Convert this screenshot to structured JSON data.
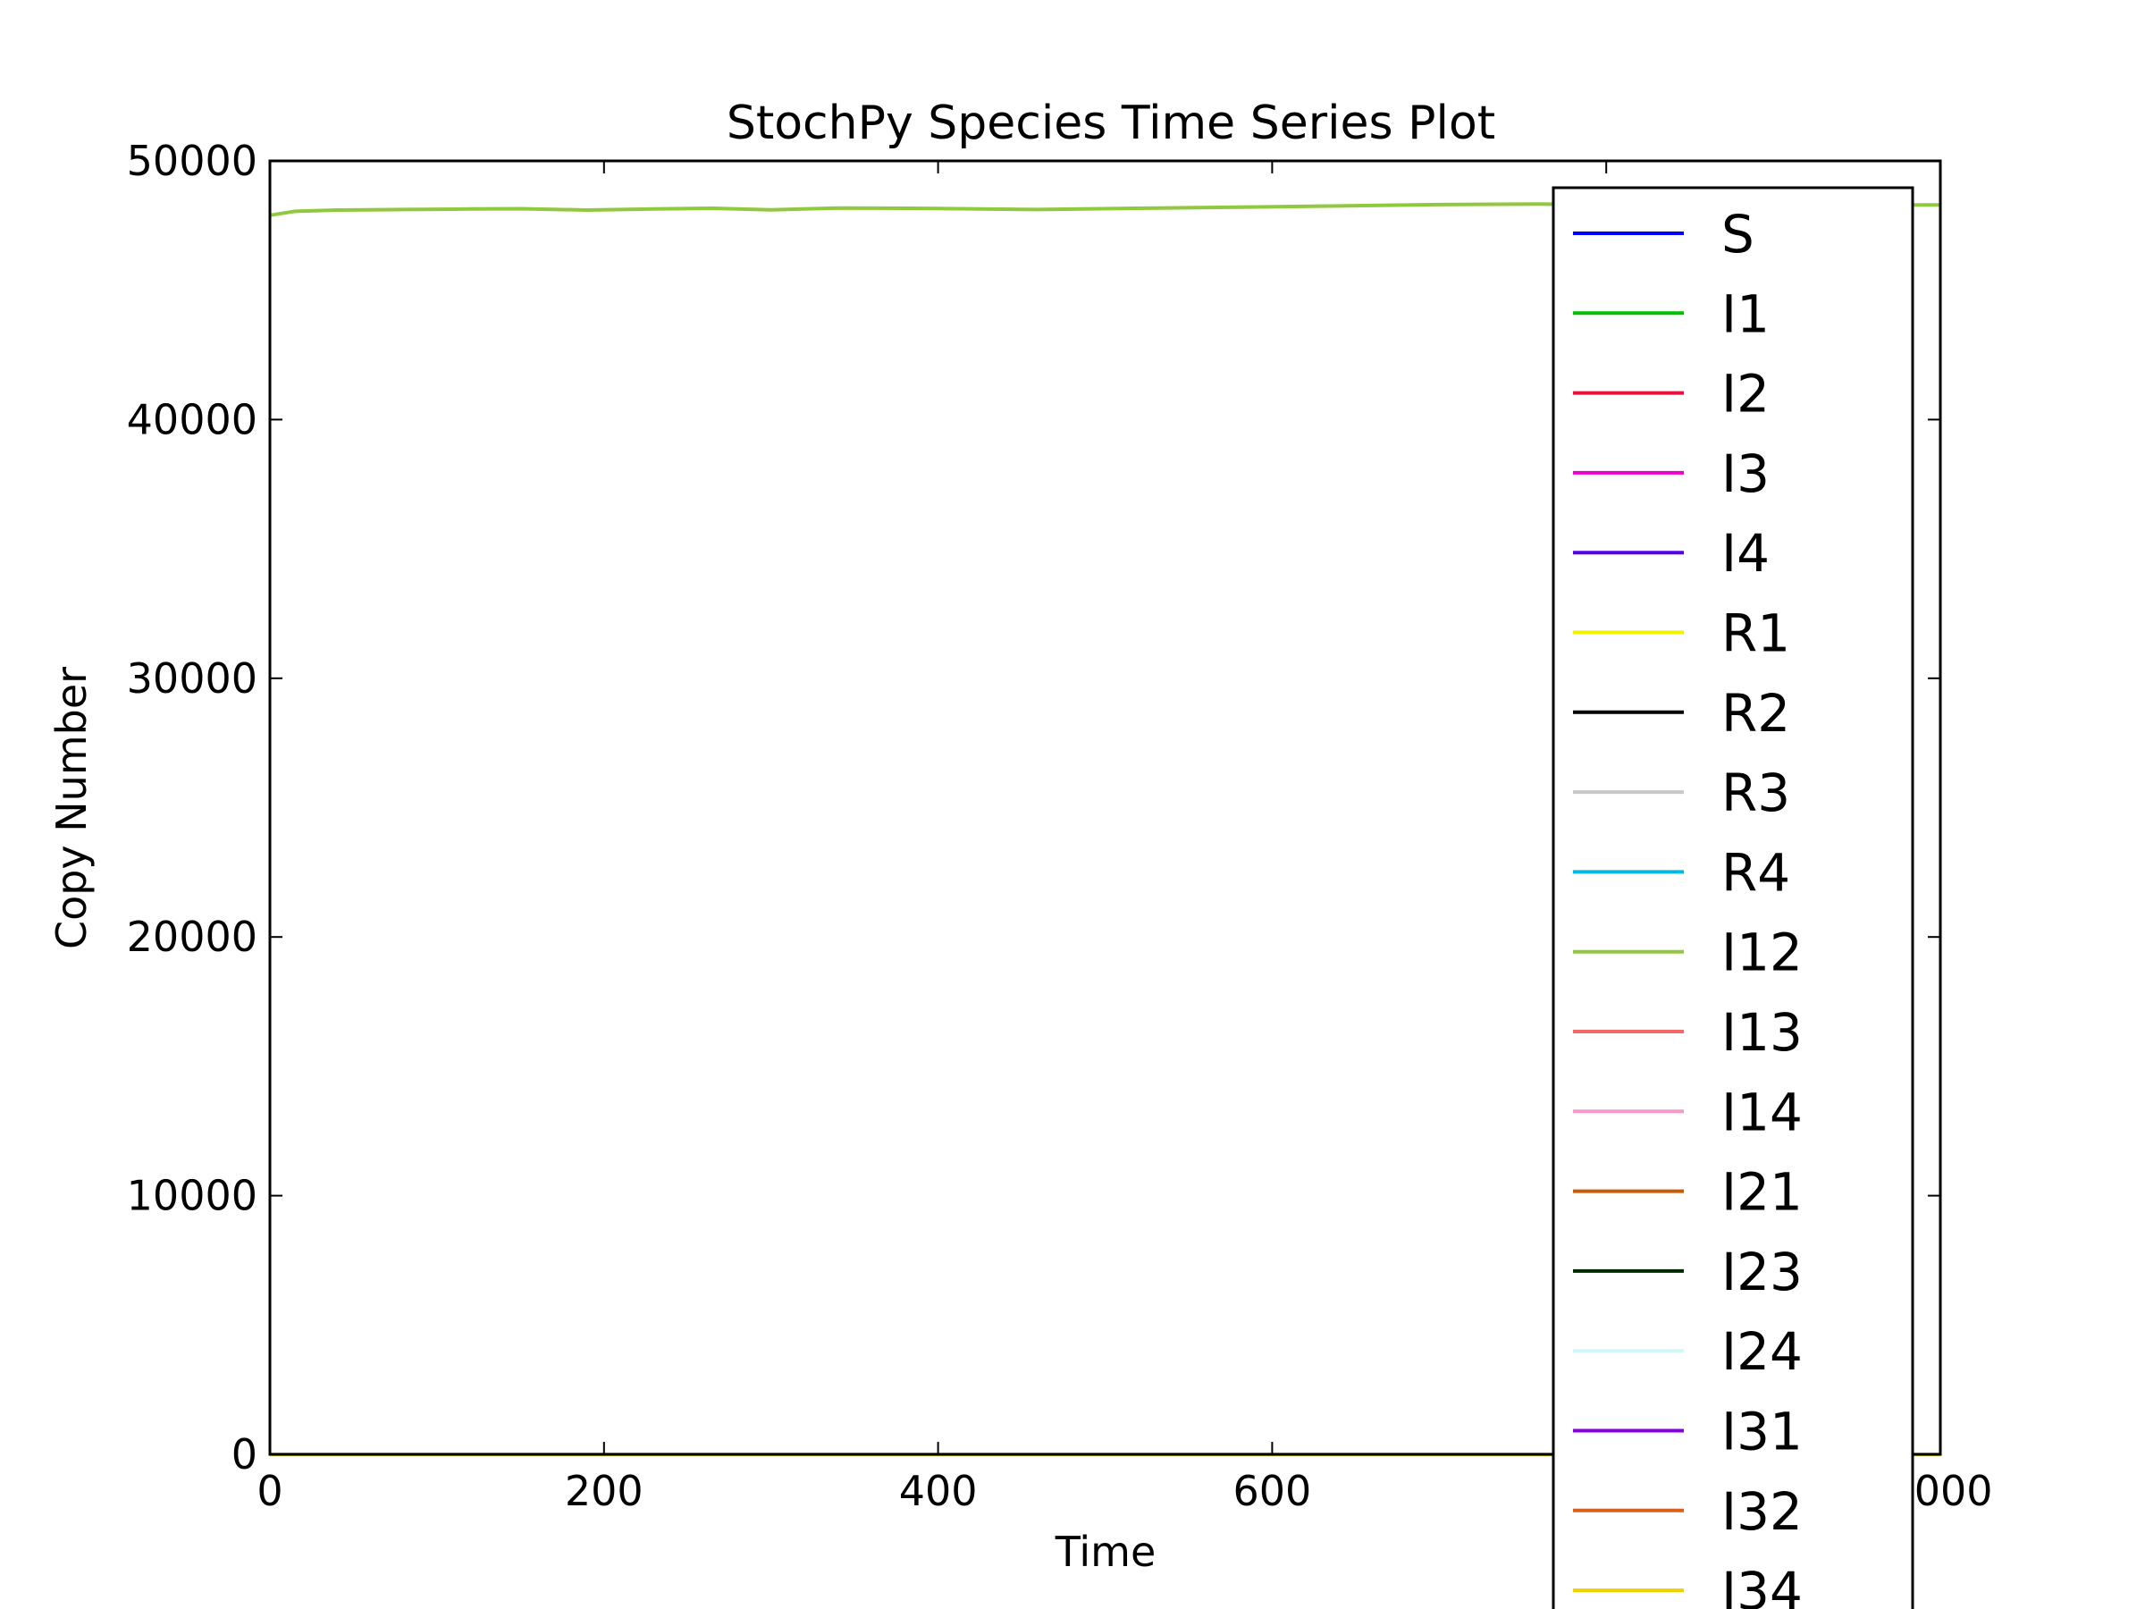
{
  "chart_data": {
    "type": "line",
    "title": "StochPy Species Time Series Plot",
    "xlabel": "Time",
    "ylabel": "Copy Number",
    "xlim": [
      0,
      1000
    ],
    "ylim": [
      0,
      50000
    ],
    "x_ticks": [
      0,
      200,
      400,
      600,
      800,
      1000
    ],
    "x_tick_labels": [
      "0",
      "200",
      "400",
      "600",
      "800",
      "1000"
    ],
    "y_ticks": [
      0,
      10000,
      20000,
      30000,
      40000,
      50000
    ],
    "y_tick_labels": [
      "0",
      "10000",
      "20000",
      "30000",
      "40000",
      "50000"
    ],
    "grid": false,
    "legend_position": "right",
    "series": [
      {
        "name": "S",
        "color": "#0000ff",
        "x": [
          0,
          1000
        ],
        "y": [
          0,
          0
        ]
      },
      {
        "name": "I1",
        "color": "#00c000",
        "x": [
          0,
          1000
        ],
        "y": [
          0,
          0
        ]
      },
      {
        "name": "I2",
        "color": "#e8103c",
        "x": [
          0,
          1000
        ],
        "y": [
          0,
          0
        ]
      },
      {
        "name": "I3",
        "color": "#ee00cc",
        "x": [
          0,
          1000
        ],
        "y": [
          0,
          0
        ]
      },
      {
        "name": "I4",
        "color": "#5500ee",
        "x": [
          0,
          1000
        ],
        "y": [
          0,
          0
        ]
      },
      {
        "name": "R1",
        "color": "#f2f200",
        "x": [
          0,
          1000
        ],
        "y": [
          0,
          0
        ]
      },
      {
        "name": "R2",
        "color": "#000000",
        "x": [
          0,
          1000
        ],
        "y": [
          0,
          0
        ]
      },
      {
        "name": "R3",
        "color": "#c8c8c8",
        "x": [
          0,
          1000
        ],
        "y": [
          0,
          0
        ]
      },
      {
        "name": "R4",
        "color": "#00b8e0",
        "x": [
          0,
          1000
        ],
        "y": [
          0,
          0
        ]
      },
      {
        "name": "I12",
        "color": "#90c840",
        "x": [
          0,
          15,
          40,
          80,
          120,
          150,
          190,
          230,
          265,
          300,
          340,
          400,
          460,
          520,
          580,
          640,
          700,
          760,
          800,
          850,
          900,
          950,
          1000
        ],
        "y": [
          47900,
          48050,
          48100,
          48120,
          48140,
          48150,
          48100,
          48140,
          48170,
          48110,
          48180,
          48160,
          48120,
          48170,
          48210,
          48260,
          48310,
          48330,
          48300,
          48300,
          48300,
          48290,
          48300
        ]
      },
      {
        "name": "I13",
        "color": "#f06868",
        "x": [
          0,
          1000
        ],
        "y": [
          0,
          0
        ]
      },
      {
        "name": "I14",
        "color": "#f898c8",
        "x": [
          0,
          1000
        ],
        "y": [
          0,
          0
        ]
      },
      {
        "name": "I21",
        "color": "#c85a00",
        "x": [
          0,
          1000
        ],
        "y": [
          0,
          0
        ]
      },
      {
        "name": "I23",
        "color": "#002800",
        "x": [
          0,
          1000
        ],
        "y": [
          0,
          0
        ]
      },
      {
        "name": "I24",
        "color": "#d0f8f8",
        "x": [
          0,
          1000
        ],
        "y": [
          0,
          0
        ]
      },
      {
        "name": "I31",
        "color": "#8800e0",
        "x": [
          0,
          1000
        ],
        "y": [
          0,
          0
        ]
      },
      {
        "name": "I32",
        "color": "#d86020",
        "x": [
          0,
          1000
        ],
        "y": [
          0,
          0
        ]
      },
      {
        "name": "I34",
        "color": "#f0d000",
        "x": [
          0,
          1000
        ],
        "y": [
          0,
          0
        ]
      }
    ]
  }
}
